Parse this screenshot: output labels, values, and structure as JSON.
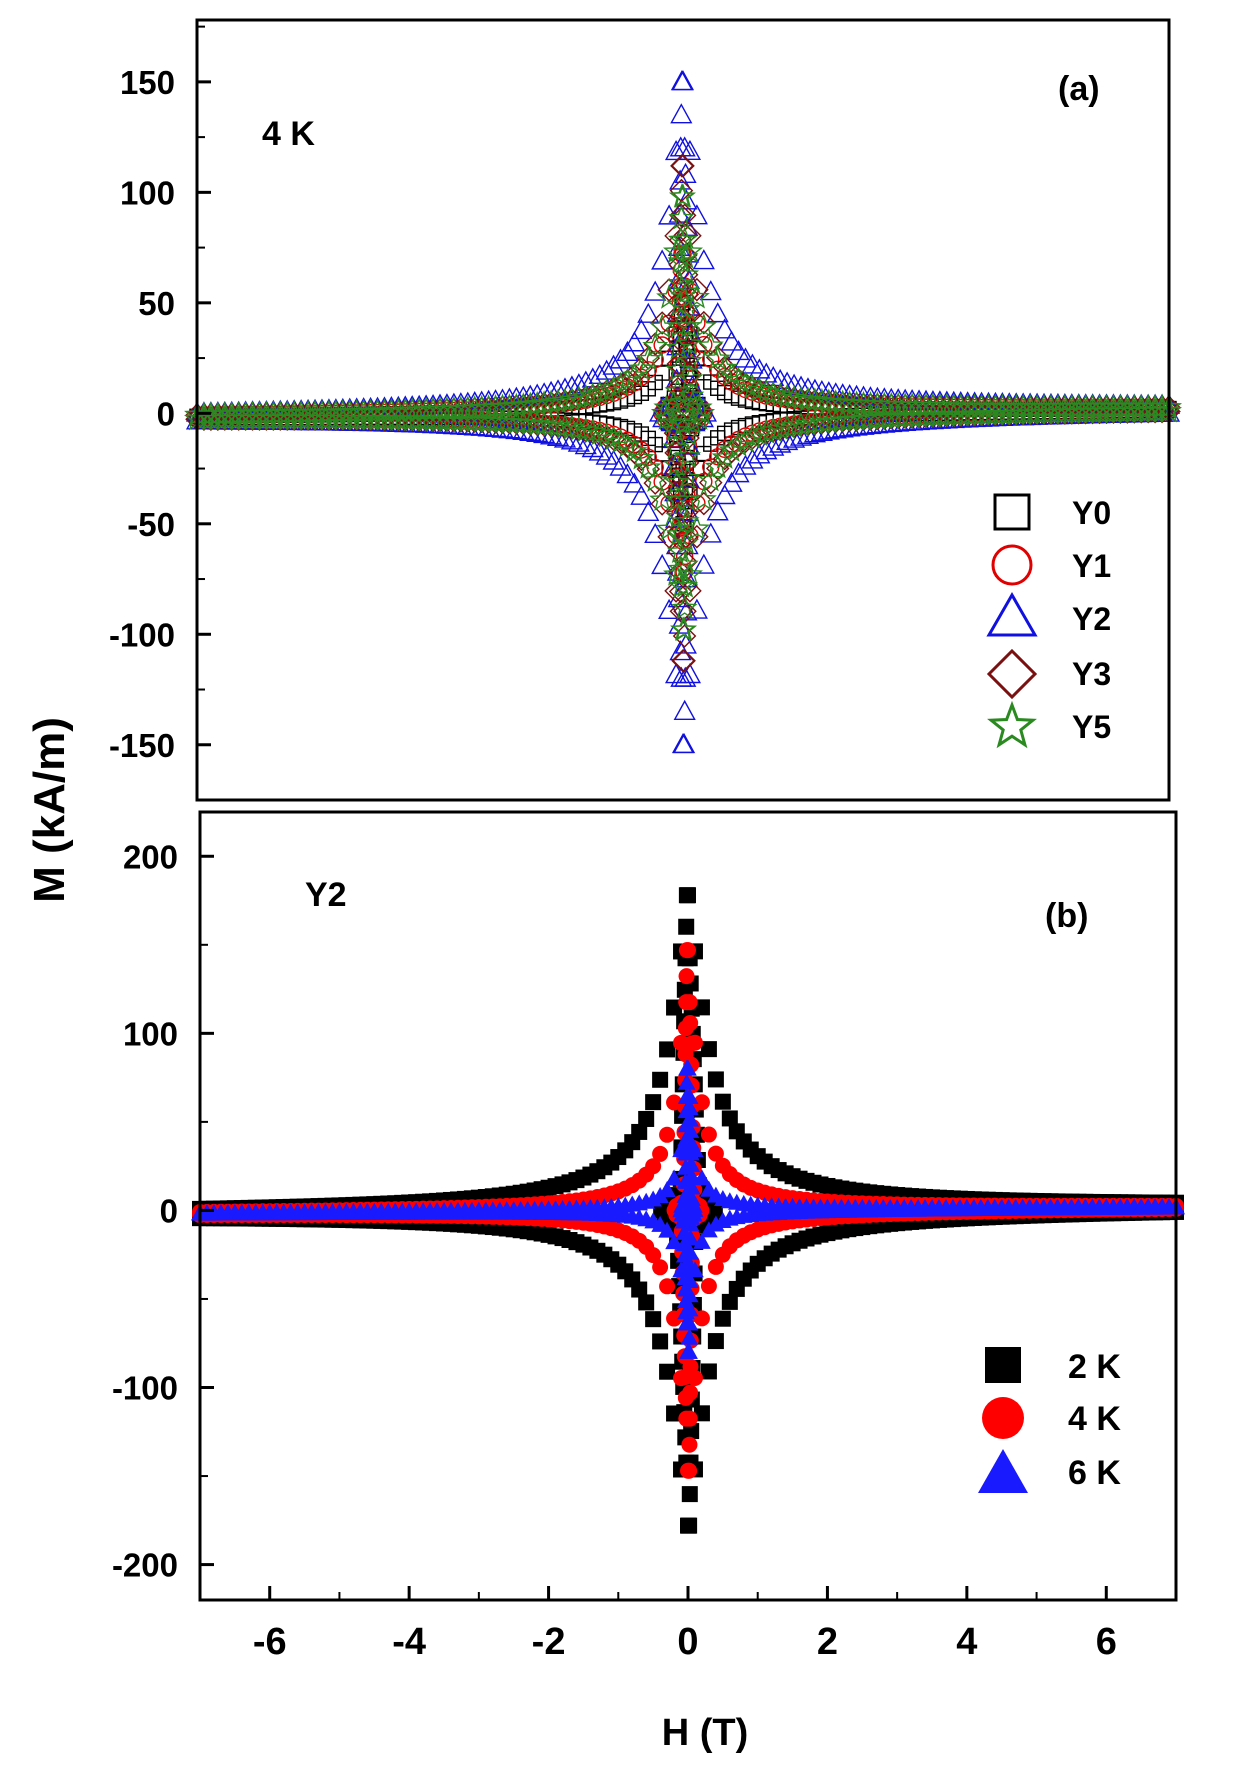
{
  "figure": {
    "ylabel": "M (kA/m)",
    "xlabel": "H (T)"
  },
  "colors": {
    "Y0": "#000000",
    "Y1": "#e00000",
    "Y2": "#1010e0",
    "Y3": "#7a1010",
    "Y5": "#2a8a20",
    "2K": "#000000",
    "4K": "#ff0000",
    "6K": "#1a1aff"
  },
  "chart_data": [
    {
      "type": "scatter",
      "panel_label": "(a)",
      "annotation": "4 K",
      "xlabel": "H (T)",
      "ylabel": "M (kA/m)",
      "xlim": [
        -7,
        7
      ],
      "ylim": [
        -175,
        178
      ],
      "yticks": [
        -150,
        -100,
        -50,
        0,
        50,
        100,
        150
      ],
      "legend_position": "bottom-right",
      "series": [
        {
          "name": "Y0",
          "marker": "open-square",
          "peak": 50,
          "width": 0.45,
          "reversal_peak": 8
        },
        {
          "name": "Y1",
          "marker": "open-circle",
          "peak": 72,
          "width": 0.55,
          "reversal_peak": 5
        },
        {
          "name": "Y2",
          "marker": "open-triangle",
          "peak": 150,
          "width": 0.6,
          "reversal_peak": 5
        },
        {
          "name": "Y3",
          "marker": "open-diamond",
          "peak": 112,
          "width": 0.45,
          "reversal_peak": 5
        },
        {
          "name": "Y5",
          "marker": "open-star",
          "peak": 98,
          "width": 0.5,
          "reversal_peak": 5
        }
      ]
    },
    {
      "type": "scatter",
      "panel_label": "(b)",
      "annotation": "Y2",
      "xlabel": "H (T)",
      "ylabel": "M (kA/m)",
      "xlim": [
        -7,
        7
      ],
      "ylim": [
        -220,
        225
      ],
      "xticks": [
        -6,
        -4,
        -2,
        0,
        2,
        4,
        6
      ],
      "yticks": [
        -200,
        -100,
        0,
        100,
        200
      ],
      "legend_position": "bottom-right",
      "series": [
        {
          "name": "2 K",
          "marker": "filled-square",
          "peak": 178,
          "width": 0.7,
          "reversal_peak": 10
        },
        {
          "name": "4 K",
          "marker": "filled-circle",
          "peak": 147,
          "width": 0.35,
          "reversal_peak": 5
        },
        {
          "name": "6 K",
          "marker": "filled-triangle",
          "peak": 80,
          "width": 0.18,
          "reversal_peak": 5
        }
      ]
    }
  ]
}
